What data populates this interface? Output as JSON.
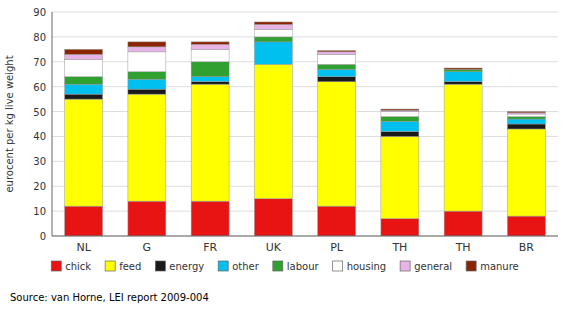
{
  "chart_data": {
    "type": "bar",
    "stacked": true,
    "categories": [
      "NL",
      "G",
      "FR",
      "UK",
      "PL",
      "TH",
      "TH",
      "BR"
    ],
    "series": [
      {
        "name": "chick",
        "color": "#e81414",
        "values": [
          12,
          14,
          14,
          15,
          12,
          7,
          10,
          8
        ]
      },
      {
        "name": "feed",
        "color": "#ffff00",
        "values": [
          43,
          43,
          47,
          54,
          50,
          33,
          51,
          35
        ]
      },
      {
        "name": "energy",
        "color": "#1a1a1a",
        "values": [
          2,
          2,
          1,
          0,
          2,
          2,
          1,
          2
        ]
      },
      {
        "name": "other",
        "color": "#00c0f0",
        "values": [
          4,
          4,
          2,
          9,
          3,
          4,
          4,
          2
        ]
      },
      {
        "name": "labour",
        "color": "#30a030",
        "values": [
          3,
          3,
          6,
          2,
          2,
          2,
          1,
          1
        ]
      },
      {
        "name": "housing",
        "color": "#ffffff",
        "values": [
          7,
          8,
          5,
          3,
          4,
          2,
          0,
          1
        ]
      },
      {
        "name": "general",
        "color": "#e8b4e8",
        "values": [
          2,
          2,
          2,
          2,
          1,
          0.5,
          0,
          0.5
        ]
      },
      {
        "name": "manure",
        "color": "#8b2500",
        "values": [
          2,
          2,
          1,
          1,
          0.5,
          0.5,
          0.5,
          0.5
        ]
      }
    ],
    "ylabel": "eurocent per kg live weight",
    "ylim": [
      0,
      90
    ],
    "yticks": [
      0,
      10,
      20,
      30,
      40,
      50,
      60,
      70,
      80,
      90
    ],
    "grid": true,
    "legend": "bottom",
    "annotations": [
      "Source: van Horne, LEI report 2009-004"
    ]
  }
}
